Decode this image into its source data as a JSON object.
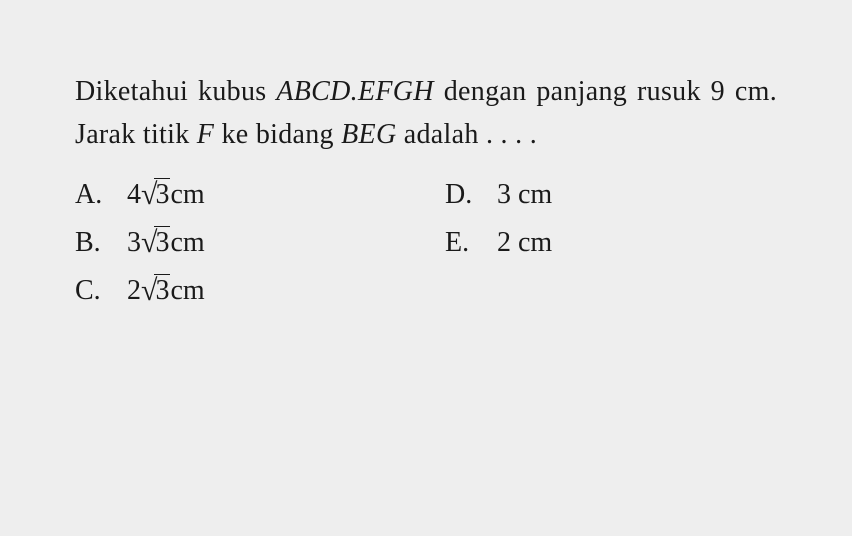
{
  "question": {
    "line1_pre": "Diketahui kubus ",
    "line1_var": "ABCD.EFGH",
    "line1_post": " dengan",
    "line2_pre": "panjang rusuk 9 cm. Jarak titik ",
    "line2_var": "F",
    "line2_post": " ke bidang",
    "line3_var": "BEG",
    "line3_post": " adalah . . . ."
  },
  "options": {
    "a": {
      "letter": "A.",
      "coeff": "4",
      "radicand": "3",
      "unit": " cm"
    },
    "b": {
      "letter": "B.",
      "coeff": "3",
      "radicand": "3",
      "unit": " cm"
    },
    "c": {
      "letter": "C.",
      "coeff": "2",
      "radicand": "3",
      "unit": " cm"
    },
    "d": {
      "letter": "D.",
      "value": "3 cm"
    },
    "e": {
      "letter": "E.",
      "value": "2 cm"
    }
  },
  "style": {
    "background": "#eeeeee",
    "text_color": "#1a1a1a",
    "font_family": "Times New Roman",
    "body_fontsize": 28
  }
}
